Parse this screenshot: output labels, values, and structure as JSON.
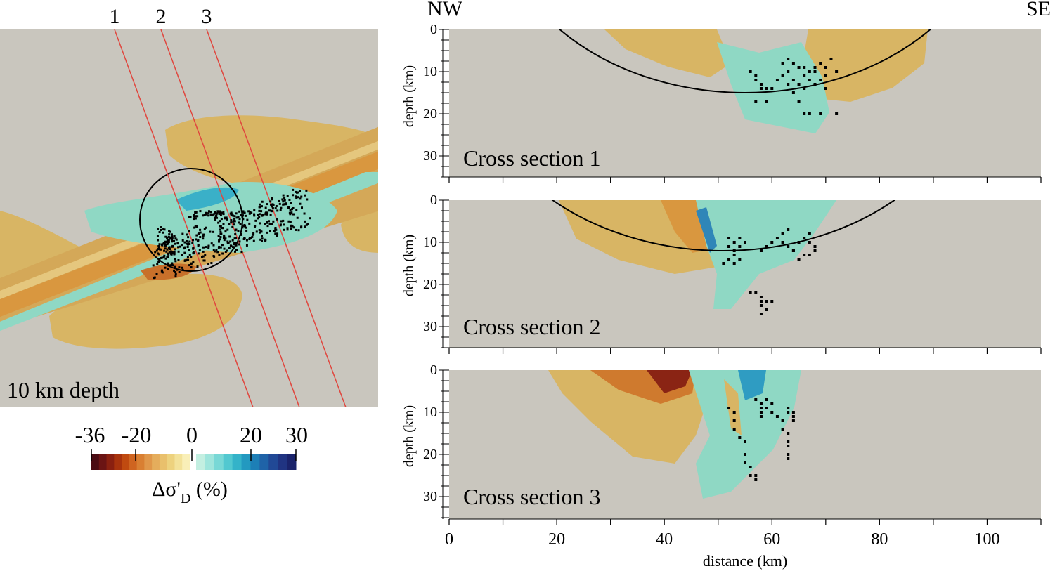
{
  "map": {
    "line_labels": [
      "1",
      "2",
      "3"
    ],
    "depth_label": "10 km depth",
    "background": "#c9c6be"
  },
  "orientation": {
    "left": "NW",
    "right": "SE"
  },
  "colorbar": {
    "ticks": [
      {
        "label": "-36",
        "value": -36
      },
      {
        "label": "-20",
        "value": -20
      },
      {
        "label": "0",
        "value": 0
      },
      {
        "label": "20",
        "value": 20
      },
      {
        "label": "30",
        "value": 30
      }
    ],
    "title_main": "Δσ'",
    "title_sub": "D",
    "title_unit": " (%)",
    "negative_colors": [
      "#4a0b12",
      "#6b1414",
      "#8a2010",
      "#a8330d",
      "#c04a10",
      "#cf6420",
      "#d97f32",
      "#e0974a",
      "#e5ad5c",
      "#e9c06c",
      "#edd27e",
      "#f3e29a",
      "#f9efb8"
    ],
    "positive_colors": [
      "#c3efe1",
      "#9fe5dc",
      "#78d8d6",
      "#52c8d0",
      "#34b3c9",
      "#2399c0",
      "#1d7fb6",
      "#1f63a8",
      "#214996",
      "#203482",
      "#1a236b"
    ]
  },
  "chart_data": {
    "type": "scatter",
    "description_axes": {
      "xlabel": "distance (km)",
      "ylabel": "depth (km)",
      "xlim": [
        0,
        110
      ],
      "ylim": [
        35,
        0
      ],
      "xticks": [
        0,
        20,
        40,
        60,
        80,
        100
      ],
      "yticks": [
        0,
        10,
        20,
        30
      ]
    },
    "panels": [
      {
        "title": "Cross section 1",
        "arc": {
          "center_x": 55,
          "center_depth": -32,
          "radius": 47
        },
        "events": [
          [
            56,
            10
          ],
          [
            57,
            11
          ],
          [
            57,
            12
          ],
          [
            58,
            13
          ],
          [
            58,
            14
          ],
          [
            59,
            14
          ],
          [
            57,
            17
          ],
          [
            62,
            8
          ],
          [
            63,
            7
          ],
          [
            64,
            8
          ],
          [
            65,
            9
          ],
          [
            66,
            9
          ],
          [
            67,
            10
          ],
          [
            68,
            9
          ],
          [
            69,
            8
          ],
          [
            70,
            9
          ],
          [
            71,
            7
          ],
          [
            72,
            10
          ],
          [
            64,
            12
          ],
          [
            65,
            13
          ],
          [
            66,
            11
          ],
          [
            67,
            12
          ],
          [
            68,
            13
          ],
          [
            69,
            12
          ],
          [
            70,
            14
          ],
          [
            62,
            11
          ],
          [
            63,
            13
          ],
          [
            61,
            12
          ],
          [
            60,
            14
          ],
          [
            65,
            17
          ],
          [
            66,
            20
          ],
          [
            67,
            20
          ],
          [
            69,
            20
          ],
          [
            72,
            20
          ],
          [
            68,
            10
          ],
          [
            70,
            11
          ],
          [
            66,
            14
          ],
          [
            63,
            10
          ],
          [
            59,
            17
          ],
          [
            64,
            15
          ]
        ]
      },
      {
        "title": "Cross section 2",
        "arc": {
          "center_x": 51,
          "center_depth": -36,
          "radius": 48
        },
        "events": [
          [
            52,
            9
          ],
          [
            53,
            10
          ],
          [
            52,
            11
          ],
          [
            53,
            12
          ],
          [
            54,
            9
          ],
          [
            54,
            11
          ],
          [
            53,
            13
          ],
          [
            52,
            14
          ],
          [
            51,
            15
          ],
          [
            53,
            15
          ],
          [
            54,
            14
          ],
          [
            55,
            10
          ],
          [
            61,
            9
          ],
          [
            62,
            10
          ],
          [
            62,
            8
          ],
          [
            63,
            7
          ],
          [
            63,
            11
          ],
          [
            64,
            12
          ],
          [
            65,
            10
          ],
          [
            66,
            9
          ],
          [
            67,
            8
          ],
          [
            67,
            10
          ],
          [
            68,
            11
          ],
          [
            68,
            12
          ],
          [
            66,
            13
          ],
          [
            65,
            14
          ],
          [
            64,
            12
          ],
          [
            67,
            13
          ],
          [
            58,
            12
          ],
          [
            59,
            11
          ],
          [
            60,
            10
          ],
          [
            57,
            22
          ],
          [
            58,
            23
          ],
          [
            58,
            24
          ],
          [
            59,
            24
          ],
          [
            58,
            25
          ],
          [
            59,
            26
          ],
          [
            58,
            27
          ],
          [
            60,
            24
          ],
          [
            56,
            22
          ]
        ]
      },
      {
        "title": "Cross section 3",
        "events": [
          [
            57,
            7
          ],
          [
            58,
            8
          ],
          [
            58,
            9
          ],
          [
            59,
            7
          ],
          [
            58,
            10
          ],
          [
            59,
            9
          ],
          [
            60,
            8
          ],
          [
            60,
            10
          ],
          [
            58,
            11
          ],
          [
            61,
            11
          ],
          [
            62,
            12
          ],
          [
            62,
            14
          ],
          [
            63,
            15
          ],
          [
            63,
            10
          ],
          [
            64,
            10
          ],
          [
            63,
            9
          ],
          [
            64,
            11
          ],
          [
            64,
            12
          ],
          [
            52,
            9
          ],
          [
            53,
            10
          ],
          [
            53,
            12
          ],
          [
            53,
            14
          ],
          [
            54,
            16
          ],
          [
            55,
            17
          ],
          [
            55,
            20
          ],
          [
            55,
            22
          ],
          [
            56,
            23
          ],
          [
            56,
            25
          ],
          [
            57,
            25
          ],
          [
            57,
            26
          ],
          [
            63,
            17
          ],
          [
            63,
            18
          ],
          [
            63,
            20
          ],
          [
            63,
            21
          ]
        ]
      }
    ]
  }
}
